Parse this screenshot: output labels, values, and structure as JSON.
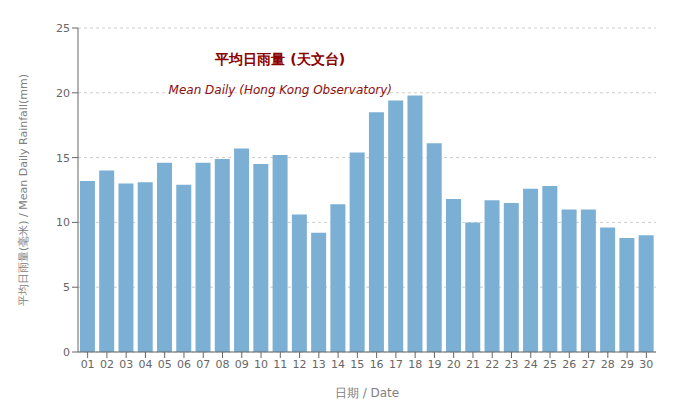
{
  "chart_data": {
    "type": "bar",
    "categories": [
      "01",
      "02",
      "03",
      "04",
      "05",
      "06",
      "07",
      "08",
      "09",
      "10",
      "11",
      "12",
      "13",
      "14",
      "15",
      "16",
      "17",
      "18",
      "19",
      "20",
      "21",
      "22",
      "23",
      "24",
      "25",
      "26",
      "27",
      "28",
      "29",
      "30"
    ],
    "values": [
      13.2,
      14.0,
      13.0,
      13.1,
      14.6,
      12.9,
      14.6,
      14.9,
      15.7,
      14.5,
      15.2,
      10.6,
      9.2,
      11.4,
      15.4,
      18.5,
      19.4,
      19.8,
      16.1,
      11.8,
      10.0,
      11.7,
      11.5,
      12.6,
      12.8,
      11.0,
      11.0,
      9.6,
      8.8,
      9.0
    ],
    "color": "#7bafd4",
    "xlabel": "日期 / Date",
    "ylabel": "平均日雨量(毫米) / Mean Daily Rainfall(mm)",
    "annotations": [
      "平均日雨量 (天文台)",
      "Mean Daily (Hong Kong Observatory)"
    ],
    "ylim": [
      0,
      25
    ],
    "yticks": [
      0,
      5,
      10,
      15,
      20,
      25
    ],
    "grid": true
  }
}
